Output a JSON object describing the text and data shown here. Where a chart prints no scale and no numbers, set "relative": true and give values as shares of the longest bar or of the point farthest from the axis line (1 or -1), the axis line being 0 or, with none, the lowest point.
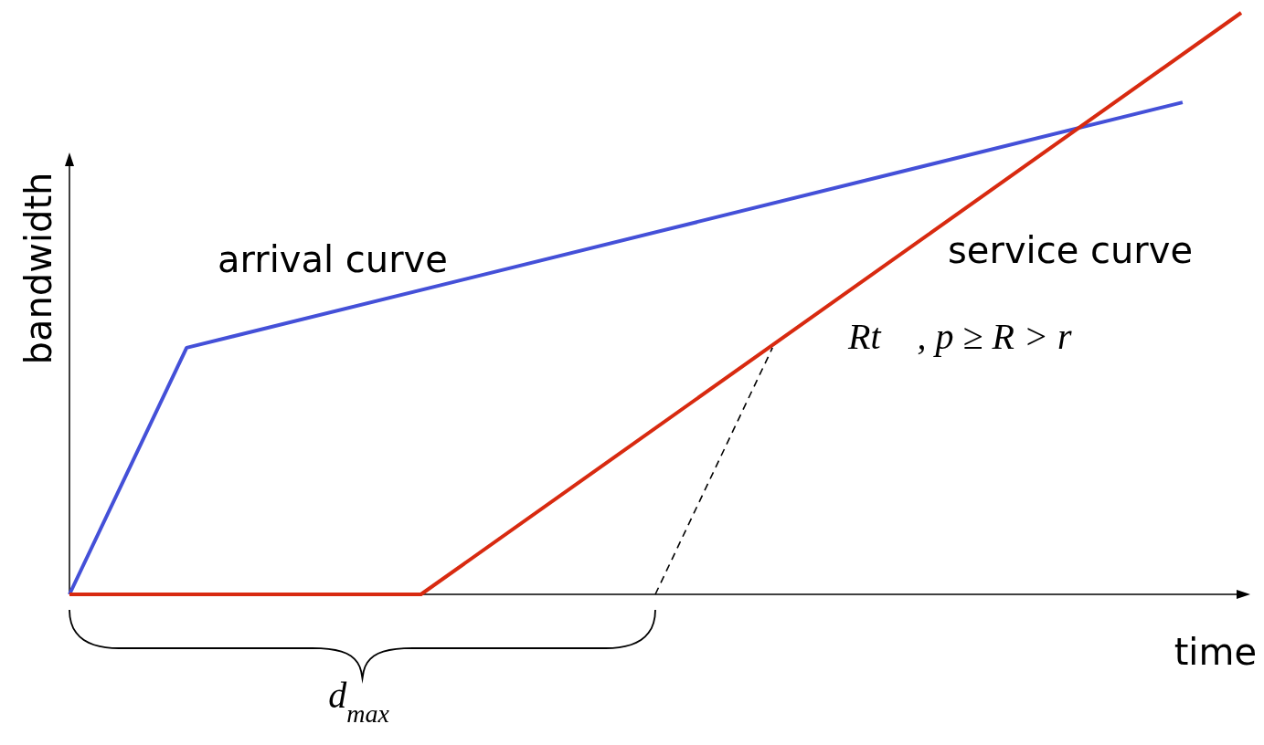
{
  "chart_data": {
    "type": "line",
    "relative": true,
    "xlabel": "time",
    "ylabel": "bandwidth",
    "marker": "none",
    "categories": [
      null,
      null,
      null,
      null,
      null,
      null,
      null,
      null,
      null,
      null,
      null,
      null,
      null,
      null,
      null,
      null,
      null,
      null,
      null,
      null,
      null
    ],
    "series": [
      {
        "name": "arrival curve",
        "color": "#4450d8",
        "values": [
          0,
          null,
          0.424,
          null,
          null,
          null,
          null,
          null,
          null,
          null,
          null,
          null,
          null,
          null,
          null,
          null,
          null,
          null,
          null,
          0.846,
          null
        ]
      },
      {
        "name": "service curve",
        "color": "#d82a10",
        "values": [
          0,
          null,
          null,
          null,
          null,
          null,
          0,
          null,
          null,
          null,
          null,
          null,
          null,
          null,
          null,
          null,
          null,
          null,
          null,
          null,
          1
        ]
      },
      {
        "color": "#000000",
        "line_style": "dashed",
        "values": [
          null,
          null,
          null,
          null,
          null,
          null,
          null,
          null,
          null,
          null,
          0,
          null,
          0.424,
          null,
          null,
          null,
          null,
          null,
          null,
          null,
          null
        ]
      }
    ],
    "annotations": [
      "Rt    , p ≥ R > r",
      "d$_{max}$"
    ]
  }
}
